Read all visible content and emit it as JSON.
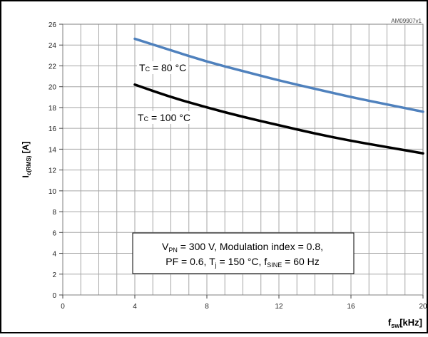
{
  "chart_data": {
    "type": "line",
    "title": "",
    "figure_id": "AM09907v1",
    "xlabel": {
      "main": "f",
      "sub": "sw",
      "unit": "[kHz]"
    },
    "ylabel": {
      "main": "I",
      "sub": "c(RMS)",
      "unit": " [A]"
    },
    "xlim": [
      0,
      20
    ],
    "ylim": [
      0,
      26
    ],
    "x_ticks": [
      0,
      4,
      8,
      12,
      16,
      20
    ],
    "y_ticks": [
      0,
      2,
      4,
      6,
      8,
      10,
      12,
      14,
      16,
      18,
      20,
      22,
      24,
      26
    ],
    "grid": true,
    "series": [
      {
        "name": "Tc = 80 °C",
        "label_prefix": "T",
        "label_sub": "C",
        "label_suffix": " = 80 °C",
        "color": "#4f81bd",
        "x": [
          4,
          6,
          8,
          10,
          12,
          14,
          16,
          18,
          20
        ],
        "y": [
          24.6,
          23.5,
          22.4,
          21.5,
          20.6,
          19.8,
          19.0,
          18.3,
          17.6
        ]
      },
      {
        "name": "Tc = 100 °C",
        "label_prefix": "T",
        "label_sub": "C",
        "label_suffix": " = 100 °C",
        "color": "#000000",
        "x": [
          4,
          6,
          8,
          10,
          12,
          14,
          16,
          18,
          20
        ],
        "y": [
          20.2,
          19.0,
          18.0,
          17.1,
          16.3,
          15.5,
          14.8,
          14.2,
          13.6
        ]
      }
    ],
    "annotation": {
      "line1": [
        {
          "t": "V"
        },
        {
          "t": "PN",
          "sub": true
        },
        {
          "t": " = 300 V, Modulation index = 0.8,"
        }
      ],
      "line2": [
        {
          "t": "PF = 0.6, T"
        },
        {
          "t": "j",
          "sub": true
        },
        {
          "t": " = 150 °C, f"
        },
        {
          "t": "SINE",
          "sub": true
        },
        {
          "t": " = 60 Hz"
        }
      ]
    }
  }
}
